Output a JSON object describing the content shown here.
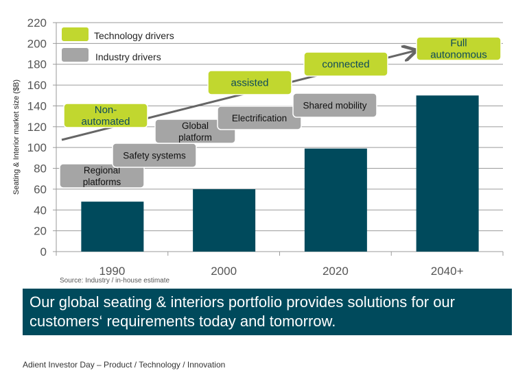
{
  "chart_data": {
    "type": "bar",
    "categories": [
      "1990",
      "2000",
      "2020",
      "2040+"
    ],
    "values": [
      48,
      60,
      99,
      150
    ],
    "ylabel": "Seating & Interior  market size  ($B)",
    "ylim": [
      0,
      220
    ],
    "yticks": [
      0,
      20,
      40,
      60,
      80,
      100,
      120,
      140,
      160,
      180,
      200,
      220
    ],
    "grid": true,
    "bar_color": "#004a5c",
    "legend": {
      "placement": "top-left",
      "items": [
        {
          "label": "Technology drivers",
          "color": "#c1d72f"
        },
        {
          "label": "Industry drivers",
          "color": "#a5a5a5"
        }
      ]
    },
    "technology_drivers": [
      "Non-\nautomated",
      "assisted",
      "connected",
      "Full\nautonomous"
    ],
    "industry_drivers": [
      "Regional\nplatforms",
      "Safety systems",
      "Global\nplatform",
      "Electrification",
      "Shared mobility"
    ]
  },
  "source": "Source: Industry / in-house estimate",
  "banner": "Our global seating & interiors portfolio provides solutions for our customers‘ requirements today and tomorrow.",
  "footer": "Adient Investor Day – Product / Technology / Innovation"
}
